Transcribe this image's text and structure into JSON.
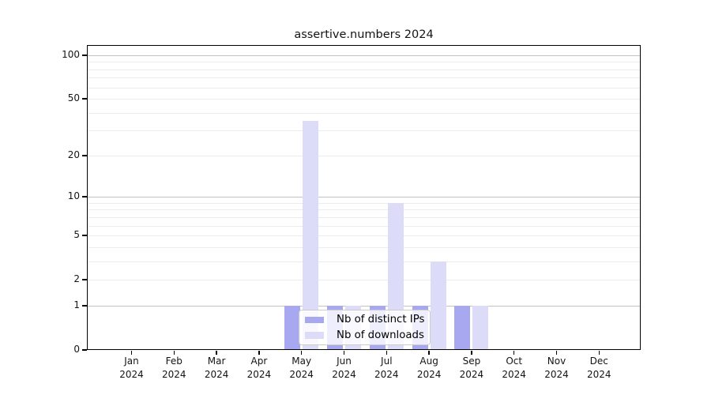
{
  "page": {
    "background": "#ffffff"
  },
  "chart_data": {
    "type": "bar",
    "title": "assertive.numbers 2024",
    "categories": [
      "Jan 2024",
      "Feb 2024",
      "Mar 2024",
      "Apr 2024",
      "May 2024",
      "Jun 2024",
      "Jul 2024",
      "Aug 2024",
      "Sep 2024",
      "Oct 2024",
      "Nov 2024",
      "Dec 2024"
    ],
    "months": [
      "Jan",
      "Feb",
      "Mar",
      "Apr",
      "May",
      "Jun",
      "Jul",
      "Aug",
      "Sep",
      "Oct",
      "Nov",
      "Dec"
    ],
    "year": "2024",
    "series": [
      {
        "name": "Nb of distinct IPs",
        "color": "#a8a8f0",
        "values": [
          0,
          0,
          0,
          0,
          1,
          1,
          1,
          1,
          1,
          0,
          0,
          0
        ]
      },
      {
        "name": "Nb of downloads",
        "color": "#dcdcf8",
        "values": [
          0,
          0,
          0,
          0,
          35,
          1,
          9,
          3,
          1,
          0,
          0,
          0
        ]
      }
    ],
    "xlabel": "",
    "ylabel": "",
    "yticks": [
      0,
      1,
      2,
      5,
      10,
      20,
      50,
      100
    ],
    "major_gridlines": [
      1,
      10,
      100
    ],
    "minor_gridlines": [
      2,
      3,
      4,
      5,
      6,
      7,
      8,
      9,
      20,
      30,
      40,
      50,
      60,
      70,
      80,
      90
    ],
    "scale": "log1p",
    "ylim": [
      0,
      117
    ],
    "grid": "horizontal",
    "legend_position": "lower center"
  },
  "colors": {
    "spine": "#000000",
    "major_grid": "#c2c2c2",
    "minor_grid": "#ebebeb",
    "distinct_ips_bar": "#a8a8f0",
    "downloads_bar": "#dcdcf8"
  }
}
